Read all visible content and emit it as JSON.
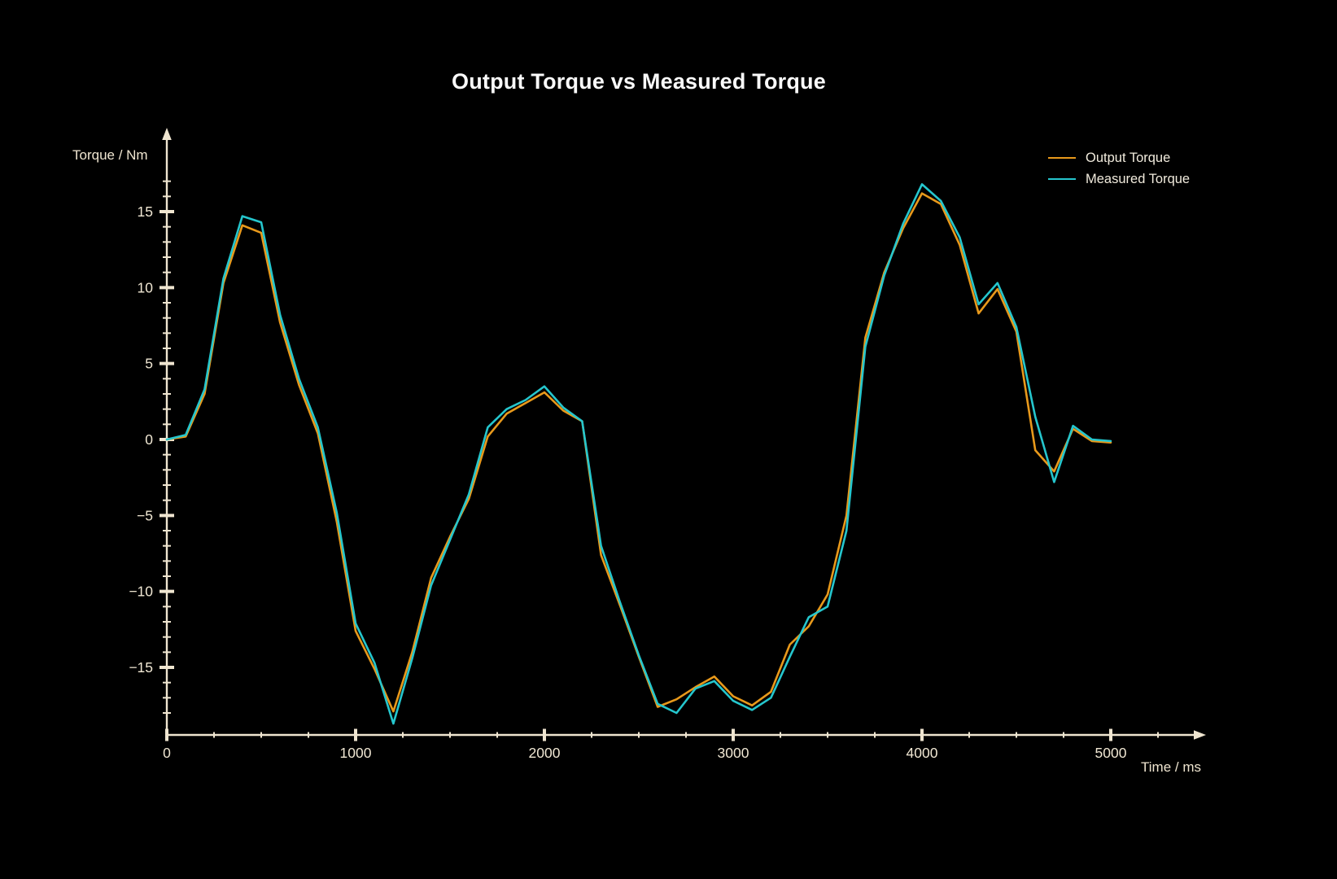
{
  "title": "Output Torque vs Measured Torque",
  "colors": {
    "background": "#000000",
    "title": "#fafafa",
    "axis": "#efe5d0",
    "tick_label": "#f0e7d3",
    "output": "#e8991b",
    "measured": "#25c6cd"
  },
  "axes": {
    "x": {
      "label": "Time / ms",
      "major_ticks": [
        0,
        1000,
        2000,
        3000,
        4000,
        5000
      ],
      "minor_step": 250,
      "minor_max": 5250
    },
    "y": {
      "label": "Torque / Nm",
      "major_ticks": [
        -15,
        -10,
        -5,
        0,
        5,
        10,
        15
      ],
      "minor_step": 1,
      "minor_min": -18,
      "minor_max": 17
    }
  },
  "legend": [
    {
      "label": "Output Torque",
      "color_key": "output"
    },
    {
      "label": "Measured Torque",
      "color_key": "measured"
    }
  ],
  "chart_data": {
    "type": "line",
    "title": "Output Torque vs Measured Torque",
    "xlabel": "Time / ms",
    "ylabel": "Torque / Nm",
    "xlim": [
      0,
      5430
    ],
    "ylim": [
      -19.5,
      20
    ],
    "grid": false,
    "legend_position": "top-right",
    "x_ms": [
      0,
      100,
      200,
      300,
      400,
      500,
      600,
      700,
      800,
      900,
      1000,
      1100,
      1200,
      1300,
      1400,
      1500,
      1600,
      1700,
      1800,
      1900,
      2000,
      2100,
      2200,
      2300,
      2400,
      2500,
      2600,
      2700,
      2800,
      2900,
      3000,
      3100,
      3200,
      3300,
      3400,
      3500,
      3600,
      3700,
      3800,
      3900,
      4000,
      4100,
      4200,
      4300,
      4400,
      4500,
      4600,
      4700,
      4800,
      4900,
      5000
    ],
    "series": [
      {
        "name": "Output Torque",
        "color": "#e8991b",
        "values": [
          0.0,
          0.2,
          3.0,
          10.3,
          14.1,
          13.6,
          7.7,
          3.6,
          0.4,
          -5.4,
          -12.6,
          -15.1,
          -17.9,
          -14.0,
          -9.1,
          -6.4,
          -3.9,
          0.2,
          1.7,
          2.4,
          3.1,
          1.9,
          1.2,
          -7.6,
          -10.9,
          -14.3,
          -17.6,
          -17.1,
          -16.3,
          -15.6,
          -16.9,
          -17.5,
          -16.6,
          -13.5,
          -12.3,
          -10.2,
          -5.0,
          6.7,
          11.0,
          13.9,
          16.2,
          15.5,
          12.8,
          8.3,
          9.9,
          7.1,
          -0.7,
          -2.1,
          0.7,
          -0.1,
          -0.2
        ]
      },
      {
        "name": "Measured Torque",
        "color": "#25c6cd",
        "values": [
          0.0,
          0.3,
          3.3,
          10.6,
          14.7,
          14.3,
          8.2,
          4.0,
          0.8,
          -4.8,
          -12.1,
          -14.7,
          -18.7,
          -14.4,
          -9.6,
          -6.6,
          -3.6,
          0.8,
          2.0,
          2.6,
          3.5,
          2.1,
          1.2,
          -7.0,
          -10.7,
          -14.2,
          -17.4,
          -18.0,
          -16.4,
          -15.9,
          -17.2,
          -17.8,
          -17.0,
          -14.3,
          -11.7,
          -11.0,
          -6.0,
          6.1,
          10.8,
          14.2,
          16.8,
          15.7,
          13.3,
          8.9,
          10.3,
          7.4,
          1.5,
          -2.8,
          0.9,
          0.0,
          -0.1
        ]
      }
    ]
  }
}
